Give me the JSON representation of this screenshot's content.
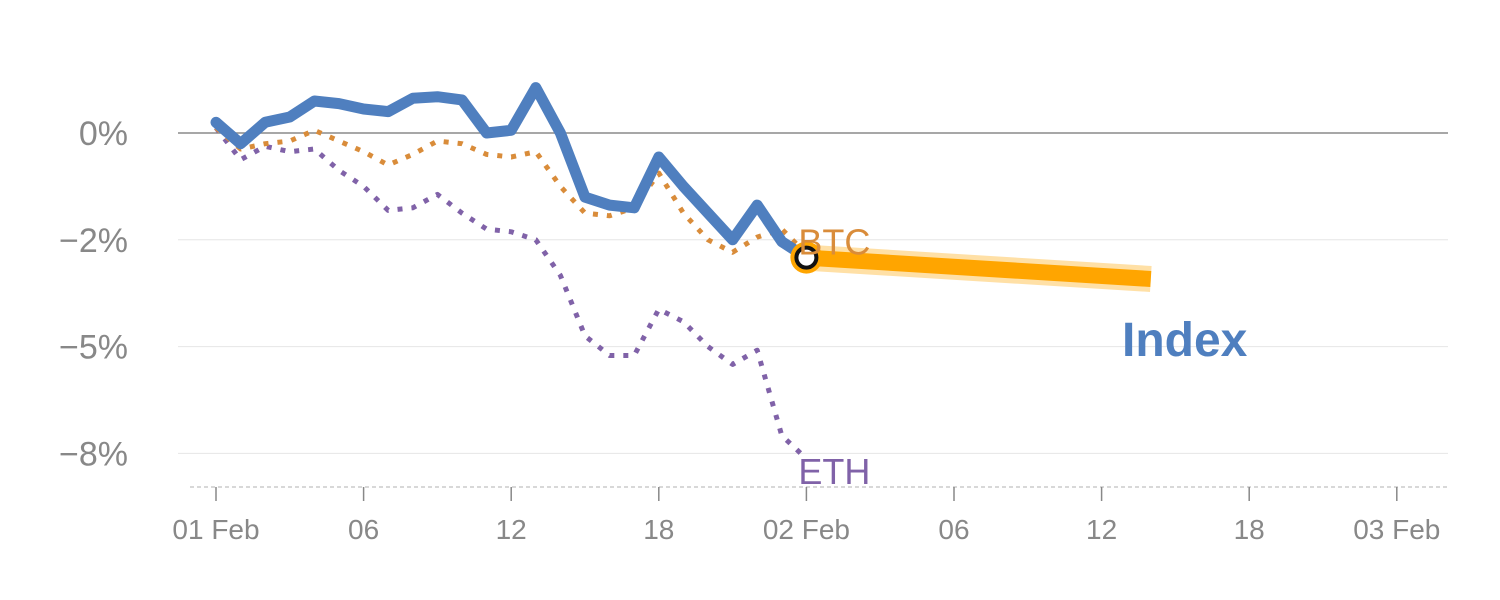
{
  "chart_data": {
    "type": "line",
    "title": "",
    "xlabel": "",
    "ylabel": "",
    "x_ticks": [
      "01 Feb",
      "06",
      "12",
      "18",
      "02 Feb",
      "06",
      "12",
      "18",
      "03 Feb"
    ],
    "y_ticks": [
      "0%",
      "−2%",
      "−5%",
      "−8%"
    ],
    "y_tick_values": [
      0,
      -2,
      -5,
      -8
    ],
    "x_hours": [
      0,
      1,
      2,
      3,
      4,
      5,
      6,
      7,
      8,
      9,
      10,
      11,
      12,
      13,
      14,
      15,
      16,
      17,
      18,
      19,
      20,
      21,
      22,
      23,
      24
    ],
    "series": [
      {
        "name": "Index",
        "color": "#4f7fbf",
        "style": "solid",
        "values": [
          0.2,
          -0.2,
          0.2,
          0.3,
          0.6,
          0.55,
          0.45,
          0.4,
          0.65,
          0.68,
          0.62,
          0.0,
          0.05,
          0.85,
          0.0,
          -1.2,
          -1.35,
          -1.4,
          -0.45,
          -1.0,
          -1.5,
          -2.0,
          -1.35,
          -2.05,
          -2.5
        ]
      },
      {
        "name": "BTC",
        "color": "#d98c3a",
        "style": "dotted",
        "values": [
          0.1,
          -0.3,
          -0.2,
          -0.15,
          0.05,
          -0.15,
          -0.35,
          -0.6,
          -0.4,
          -0.15,
          -0.2,
          -0.4,
          -0.45,
          -0.35,
          -1.0,
          -1.5,
          -1.55,
          -1.4,
          -0.75,
          -1.5,
          -2.0,
          -2.35,
          -1.95,
          -1.8,
          -2.4
        ]
      },
      {
        "name": "ETH",
        "color": "#8062a8",
        "style": "dotted",
        "values": [
          0.1,
          -0.5,
          -0.25,
          -0.35,
          -0.3,
          -0.7,
          -1.0,
          -1.45,
          -1.4,
          -1.15,
          -1.5,
          -1.8,
          -1.85,
          -2.0,
          -3.0,
          -4.7,
          -5.25,
          -5.25,
          -3.95,
          -4.3,
          -5.0,
          -5.5,
          -5.1,
          -7.5,
          -8.15
        ]
      }
    ],
    "forecast": {
      "series": "Index",
      "color": "#ffa500",
      "x_hours": [
        24,
        38
      ],
      "values": [
        -2.5,
        -3.1
      ]
    },
    "marker": {
      "x_hour": 24,
      "value": -2.5
    },
    "series_labels": [
      {
        "text": "BTC",
        "color": "#d98c3a",
        "x_hour": 24,
        "value": -1.9
      },
      {
        "text": "ETH",
        "color": "#8062a8",
        "x_hour": 24,
        "value": -8.3
      }
    ],
    "index_label": {
      "text": "Index",
      "color": "#4f7fbf"
    },
    "grid": true,
    "legend": "inline labels"
  }
}
